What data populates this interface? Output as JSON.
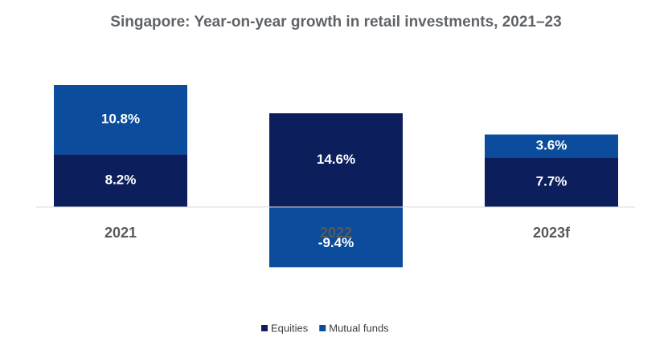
{
  "chart_data": {
    "type": "bar",
    "stacked": true,
    "title": "Singapore: Year-on-year growth in retail investments, 2021–23",
    "categories": [
      "2021",
      "2022",
      "2023f"
    ],
    "series": [
      {
        "name": "Equities",
        "color": "#0c1f5c",
        "values": [
          8.2,
          14.6,
          7.7
        ],
        "value_labels": [
          "8.2%",
          "14.6%",
          "7.7%"
        ]
      },
      {
        "name": "Mutual funds",
        "color": "#0b4c9c",
        "values": [
          10.8,
          -9.4,
          3.6
        ],
        "value_labels": [
          "10.8%",
          "-9.4%",
          "3.6%"
        ]
      }
    ]
  }
}
